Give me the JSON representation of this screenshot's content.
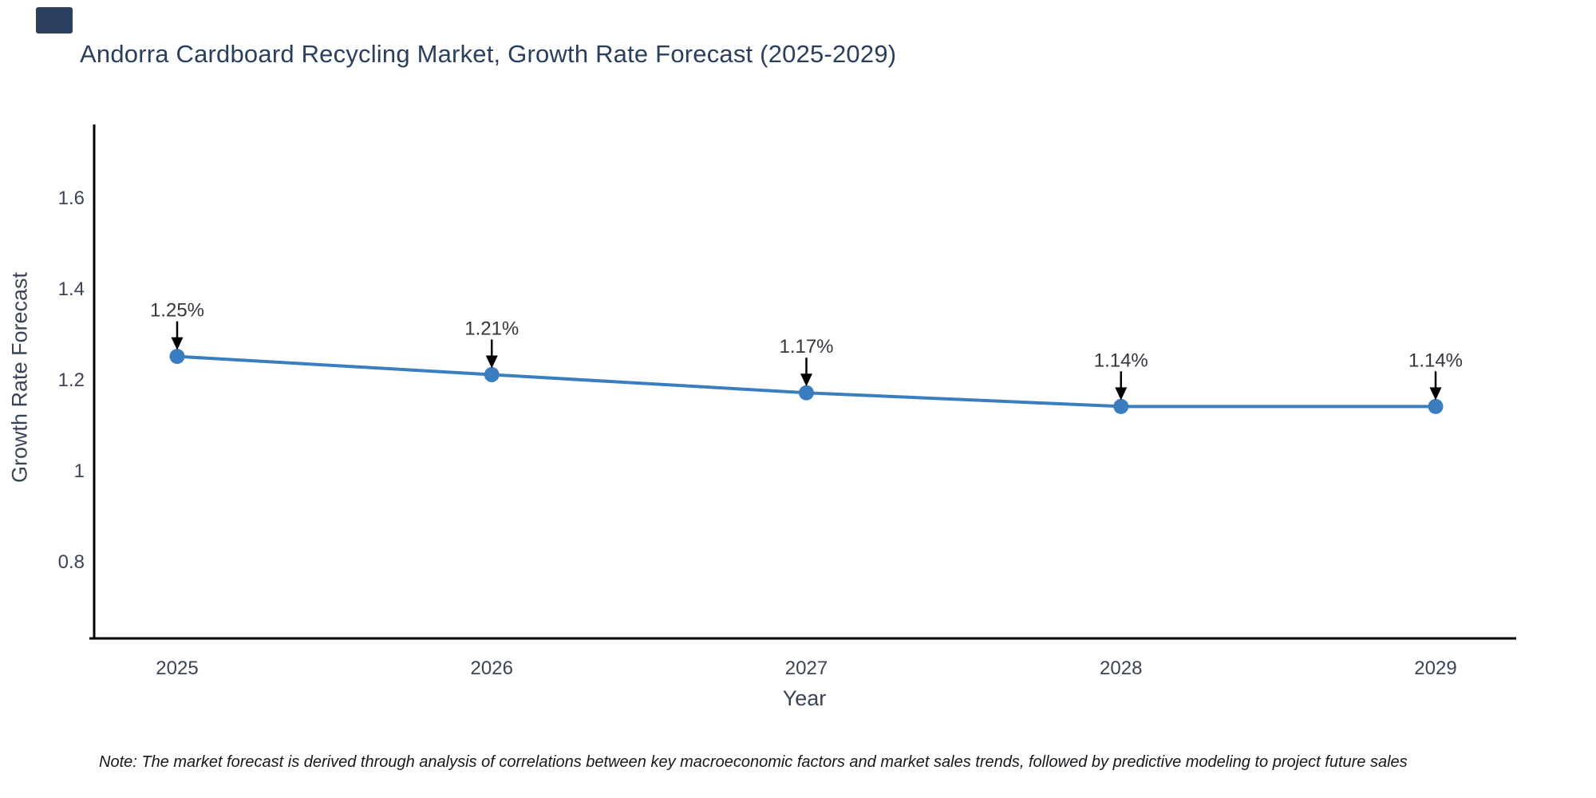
{
  "title": "Andorra Cardboard Recycling Market, Growth Rate Forecast (2025-2029)",
  "note": "Note: The market forecast is derived through analysis of correlations between key macroeconomic factors and market sales trends, followed by predictive modeling to project future sales",
  "chart_data": {
    "type": "line",
    "title": "Andorra Cardboard Recycling Market, Growth Rate Forecast (2025-2029)",
    "xlabel": "Year",
    "ylabel": "Growth Rate Forecast",
    "x": [
      2025,
      2026,
      2027,
      2028,
      2029
    ],
    "xticklabels": [
      "2025",
      "2026",
      "2027",
      "2028",
      "2029"
    ],
    "values": [
      1.25,
      1.21,
      1.17,
      1.14,
      1.14
    ],
    "point_labels": [
      "1.25%",
      "1.21%",
      "1.17%",
      "1.14%",
      "1.14%"
    ],
    "ytick_values": [
      0.8,
      1,
      1.2,
      1.4,
      1.6
    ],
    "yticklabels": [
      "0.8",
      "1",
      "1.2",
      "1.4",
      "1.6"
    ],
    "ylim": [
      0.63,
      1.76
    ],
    "grid": false,
    "legend_position": "none",
    "annotation_arrows": true,
    "colors": {
      "line": "#3a7ebf",
      "marker": "#3a7ebf",
      "axis": "#000000",
      "title_text": "#2a3f5f",
      "axis_title_text": "#3b4456",
      "tick_text": "#3b4456",
      "annotation_text": "#33373d",
      "arrow": "#000000",
      "background": "#ffffff",
      "logo_block": "#2b3f5e"
    }
  }
}
